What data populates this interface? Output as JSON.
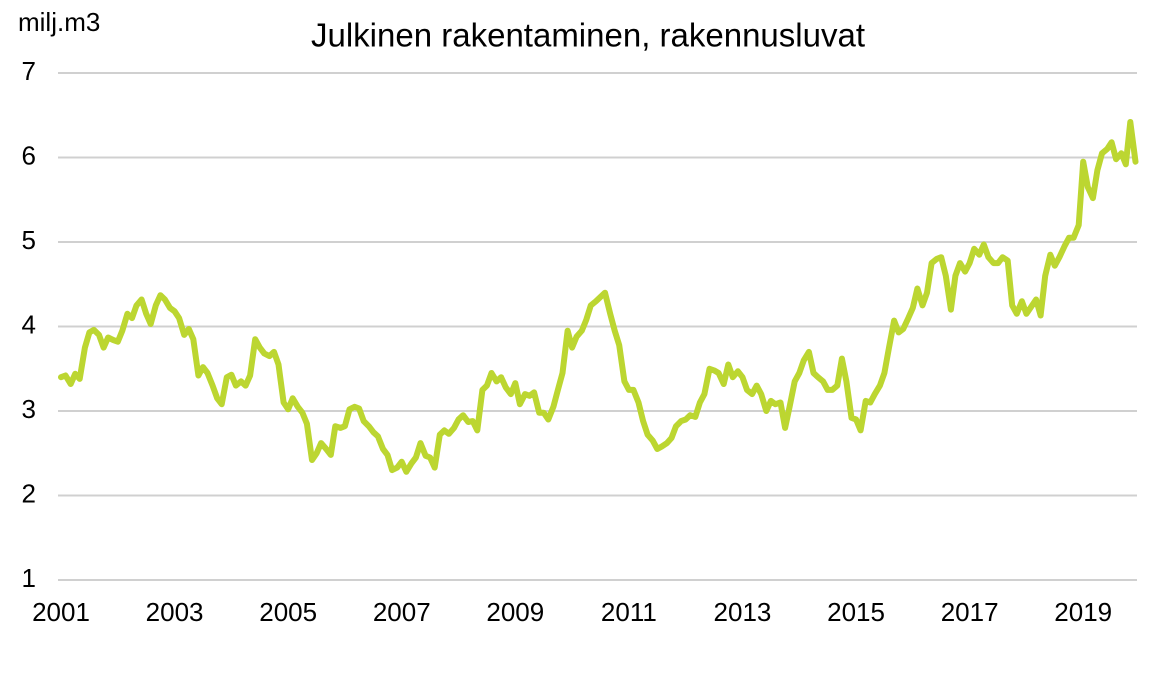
{
  "chart_data": {
    "type": "line",
    "title": "Julkinen rakentaminen, rakennusluvat",
    "y_label": "milj.m3",
    "xlim": [
      2001,
      2020
    ],
    "xticks": [
      2001,
      2003,
      2005,
      2007,
      2009,
      2011,
      2013,
      2015,
      2017,
      2019
    ],
    "ylim": [
      1,
      7
    ],
    "yticks": [
      1,
      2,
      3,
      4,
      5,
      6,
      7
    ],
    "grid": true,
    "x": [
      2001,
      2001.08,
      2001.17,
      2001.25,
      2001.33,
      2001.42,
      2001.5,
      2001.58,
      2001.67,
      2001.75,
      2001.83,
      2001.92,
      2002,
      2002.08,
      2002.17,
      2002.25,
      2002.33,
      2002.42,
      2002.5,
      2002.58,
      2002.67,
      2002.75,
      2002.83,
      2002.92,
      2003,
      2003.08,
      2003.17,
      2003.25,
      2003.33,
      2003.42,
      2003.5,
      2003.58,
      2003.67,
      2003.75,
      2003.83,
      2003.92,
      2004,
      2004.08,
      2004.17,
      2004.25,
      2004.33,
      2004.42,
      2004.5,
      2004.58,
      2004.67,
      2004.75,
      2004.83,
      2004.92,
      2005,
      2005.08,
      2005.17,
      2005.25,
      2005.33,
      2005.42,
      2005.5,
      2005.58,
      2005.67,
      2005.75,
      2005.83,
      2005.92,
      2006,
      2006.08,
      2006.17,
      2006.25,
      2006.33,
      2006.42,
      2006.5,
      2006.58,
      2006.67,
      2006.75,
      2006.83,
      2006.92,
      2007,
      2007.08,
      2007.17,
      2007.25,
      2007.33,
      2007.42,
      2007.5,
      2007.58,
      2007.67,
      2007.75,
      2007.83,
      2007.92,
      2008,
      2008.08,
      2008.17,
      2008.25,
      2008.33,
      2008.42,
      2008.5,
      2008.58,
      2008.67,
      2008.75,
      2008.83,
      2008.92,
      2009,
      2009.08,
      2009.17,
      2009.25,
      2009.33,
      2009.42,
      2009.5,
      2009.58,
      2009.67,
      2009.75,
      2009.83,
      2009.92,
      2010,
      2010.08,
      2010.17,
      2010.25,
      2010.33,
      2010.42,
      2010.5,
      2010.58,
      2010.67,
      2010.75,
      2010.83,
      2010.92,
      2011,
      2011.08,
      2011.17,
      2011.25,
      2011.33,
      2011.42,
      2011.5,
      2011.58,
      2011.67,
      2011.75,
      2011.83,
      2011.92,
      2012,
      2012.08,
      2012.17,
      2012.25,
      2012.33,
      2012.42,
      2012.5,
      2012.58,
      2012.67,
      2012.75,
      2012.83,
      2012.92,
      2013,
      2013.08,
      2013.17,
      2013.25,
      2013.33,
      2013.42,
      2013.5,
      2013.58,
      2013.67,
      2013.75,
      2013.83,
      2013.92,
      2014,
      2014.08,
      2014.17,
      2014.25,
      2014.33,
      2014.42,
      2014.5,
      2014.58,
      2014.67,
      2014.75,
      2014.83,
      2014.92,
      2015,
      2015.08,
      2015.17,
      2015.25,
      2015.33,
      2015.42,
      2015.5,
      2015.58,
      2015.67,
      2015.75,
      2015.83,
      2015.92,
      2016,
      2016.08,
      2016.17,
      2016.25,
      2016.33,
      2016.42,
      2016.5,
      2016.58,
      2016.67,
      2016.75,
      2016.83,
      2016.92,
      2017,
      2017.08,
      2017.17,
      2017.25,
      2017.33,
      2017.42,
      2017.5,
      2017.58,
      2017.67,
      2017.75,
      2017.83,
      2017.92,
      2018,
      2018.08,
      2018.17,
      2018.25,
      2018.33,
      2018.42,
      2018.5,
      2018.58,
      2018.67,
      2018.75,
      2018.83,
      2018.92,
      2019,
      2019.08,
      2019.17,
      2019.25,
      2019.33,
      2019.42,
      2019.5,
      2019.58,
      2019.67,
      2019.75,
      2019.83,
      2019.92
    ],
    "color": "#bcd631",
    "values": [
      3.4,
      3.42,
      3.32,
      3.44,
      3.38,
      3.75,
      3.93,
      3.96,
      3.9,
      3.75,
      3.87,
      3.84,
      3.82,
      3.95,
      4.15,
      4.1,
      4.25,
      4.32,
      4.15,
      4.03,
      4.25,
      4.37,
      4.32,
      4.22,
      4.18,
      4.1,
      3.9,
      3.97,
      3.85,
      3.42,
      3.52,
      3.45,
      3.3,
      3.15,
      3.08,
      3.4,
      3.43,
      3.3,
      3.35,
      3.3,
      3.42,
      3.85,
      3.75,
      3.68,
      3.65,
      3.7,
      3.55,
      3.1,
      3.02,
      3.15,
      3.05,
      2.98,
      2.85,
      2.42,
      2.5,
      2.62,
      2.55,
      2.48,
      2.82,
      2.8,
      2.82,
      3.02,
      3.05,
      3.03,
      2.88,
      2.82,
      2.75,
      2.7,
      2.55,
      2.48,
      2.3,
      2.33,
      2.4,
      2.28,
      2.38,
      2.45,
      2.62,
      2.47,
      2.45,
      2.33,
      2.72,
      2.77,
      2.73,
      2.8,
      2.9,
      2.95,
      2.87,
      2.88,
      2.77,
      3.25,
      3.3,
      3.45,
      3.35,
      3.4,
      3.28,
      3.2,
      3.33,
      3.08,
      3.2,
      3.18,
      3.22,
      2.98,
      2.98,
      2.9,
      3.05,
      3.25,
      3.45,
      3.95,
      3.75,
      3.88,
      3.95,
      4.08,
      4.25,
      4.3,
      4.35,
      4.4,
      4.15,
      3.95,
      3.78,
      3.35,
      3.25,
      3.25,
      3.1,
      2.88,
      2.72,
      2.65,
      2.55,
      2.58,
      2.62,
      2.68,
      2.82,
      2.88,
      2.9,
      2.95,
      2.93,
      3.1,
      3.2,
      3.5,
      3.48,
      3.45,
      3.32,
      3.55,
      3.4,
      3.47,
      3.4,
      3.25,
      3.2,
      3.3,
      3.2,
      3.0,
      3.12,
      3.08,
      3.1,
      2.8,
      3.05,
      3.35,
      3.45,
      3.6,
      3.7,
      3.45,
      3.4,
      3.35,
      3.25,
      3.25,
      3.3,
      3.62,
      3.35,
      2.92,
      2.9,
      2.77,
      3.12,
      3.1,
      3.2,
      3.3,
      3.45,
      3.75,
      4.07,
      3.93,
      3.97,
      4.1,
      4.22,
      4.45,
      4.25,
      4.4,
      4.75,
      4.8,
      4.82,
      4.6,
      4.2,
      4.6,
      4.75,
      4.65,
      4.75,
      4.92,
      4.85,
      4.97,
      4.82,
      4.75,
      4.75,
      4.82,
      4.78,
      4.25,
      4.15,
      4.3,
      4.15,
      4.23,
      4.32,
      4.13,
      4.6,
      4.85,
      4.72,
      4.82,
      4.95,
      5.05,
      5.05,
      5.2,
      5.95,
      5.65,
      5.52,
      5.85,
      6.05,
      6.1,
      6.18,
      5.98,
      6.05,
      5.92,
      6.42,
      5.95
    ]
  }
}
